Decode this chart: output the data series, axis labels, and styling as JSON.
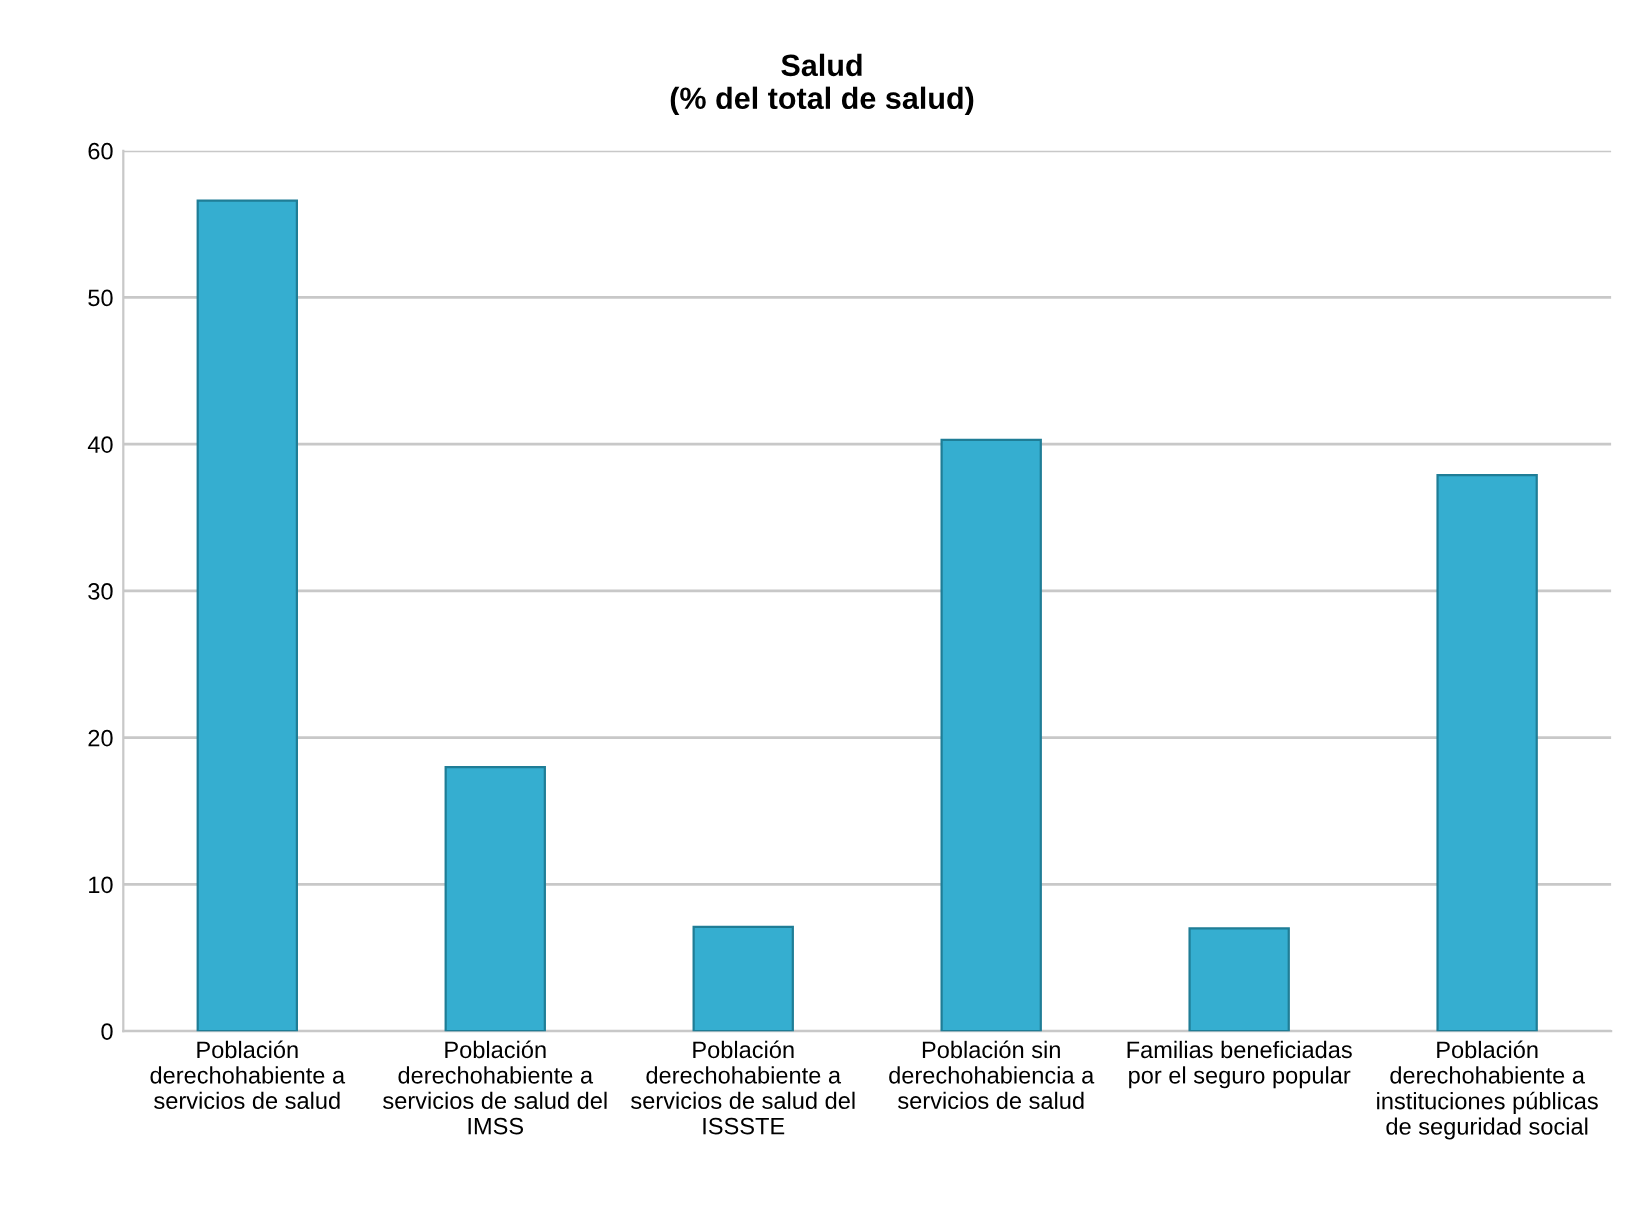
{
  "chart_data": {
    "type": "bar",
    "title": "Salud\n(% del total de salud)",
    "categories": [
      "Población\nderechohabiente a\nservicios de salud",
      "Población\nderechohabiente a\nservicios de salud del\nIMSS",
      "Población\nderechohabiente a\nservicios de salud del\nISSSTE",
      "Población sin\nderechohabiencia a\nservicios de salud",
      "Familias beneficiadas\npor el seguro popular",
      "Población\nderechohabiente a\ninstituciones públicas\nde seguridad social"
    ],
    "values": [
      56.6,
      18.0,
      7.1,
      40.3,
      7.0,
      37.9
    ],
    "color": "#35aed0",
    "ylim": [
      0,
      60
    ],
    "yticks": [
      0,
      10,
      20,
      30,
      40,
      50,
      60
    ],
    "grid": "y",
    "legend": false
  }
}
